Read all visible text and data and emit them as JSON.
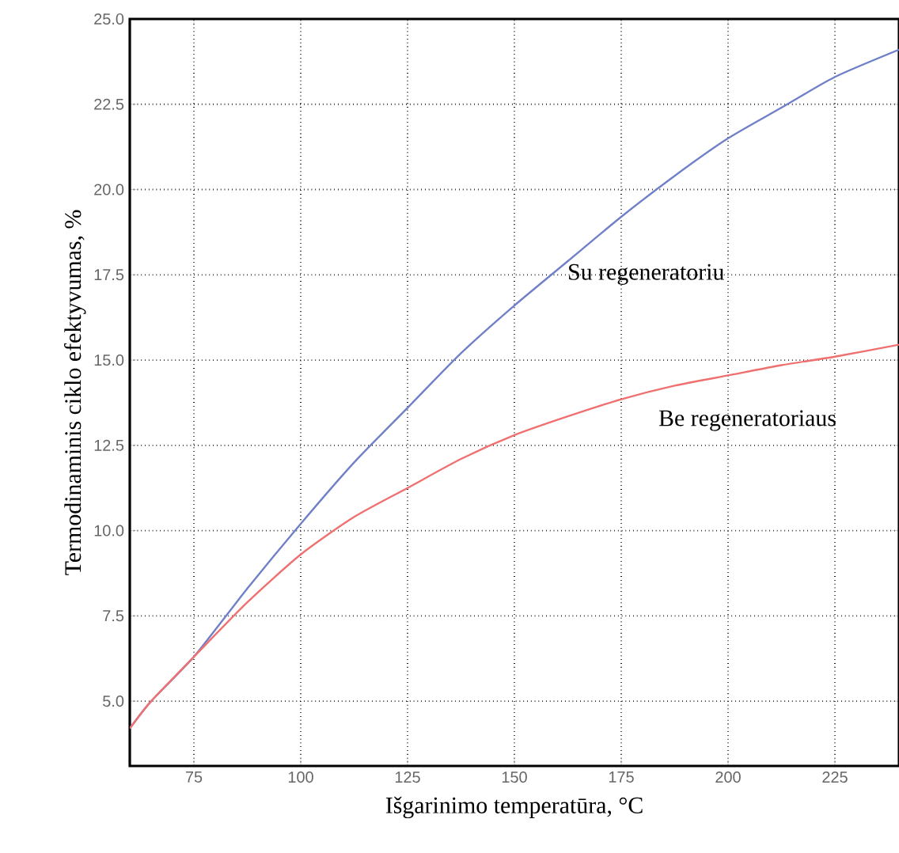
{
  "chart_data": {
    "type": "line",
    "xlabel": "Išgarinimo temperatūra, °C",
    "ylabel": "Termodinaminis ciklo efektyvumas, %",
    "xlim": [
      60,
      240
    ],
    "ylim": [
      3.1,
      25
    ],
    "xticks": [
      75,
      100,
      125,
      150,
      175,
      200,
      225
    ],
    "yticks": [
      {
        "value": 5,
        "label": "5.0"
      },
      {
        "value": 7.5,
        "label": "7.5"
      },
      {
        "value": 10,
        "label": "10.0"
      },
      {
        "value": 12.5,
        "label": "12.5"
      },
      {
        "value": 15,
        "label": "15.0"
      },
      {
        "value": 17.5,
        "label": "17.5"
      },
      {
        "value": 20,
        "label": "20.0"
      },
      {
        "value": 22.5,
        "label": "22.5"
      },
      {
        "value": 25,
        "label": "25.0"
      }
    ],
    "grid": true,
    "marker": "none",
    "line_style": "solid",
    "series": [
      {
        "name": "Su regeneratoriu",
        "color": "#7080c8",
        "x": [
          60,
          65,
          75,
          87.5,
          100,
          112.5,
          125,
          137.5,
          150,
          162.5,
          175,
          187.5,
          200,
          212.5,
          225,
          240
        ],
        "values": [
          4.2,
          5.0,
          6.3,
          8.3,
          10.2,
          12.0,
          13.6,
          15.2,
          16.6,
          17.9,
          19.2,
          20.4,
          21.5,
          22.4,
          23.3,
          24.1
        ]
      },
      {
        "name": "Be regeneratoriaus",
        "color": "#f07070",
        "x": [
          60,
          65,
          75,
          87.5,
          100,
          112.5,
          125,
          137.5,
          150,
          162.5,
          175,
          187.5,
          200,
          212.5,
          225,
          240
        ],
        "values": [
          4.2,
          5.0,
          6.3,
          7.9,
          9.3,
          10.4,
          11.25,
          12.1,
          12.8,
          13.35,
          13.85,
          14.25,
          14.55,
          14.85,
          15.1,
          15.45
        ]
      }
    ]
  }
}
